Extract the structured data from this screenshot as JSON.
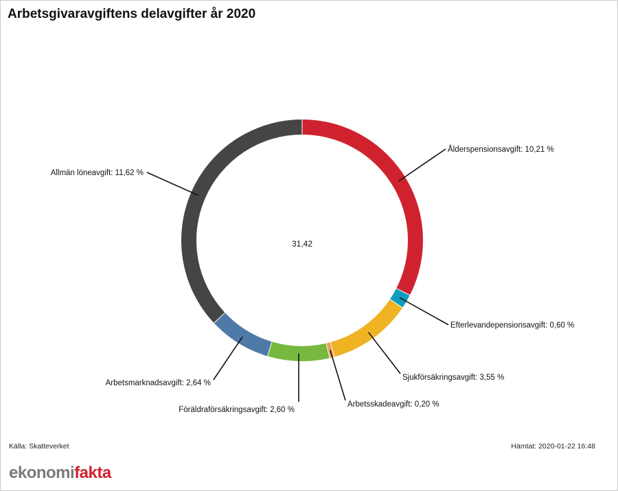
{
  "title": "Arbetsgivaravgiftens delavgifter år 2020",
  "source": "Källa: Skatteverket",
  "retrieved": "Hämtat: 2020-01-22 16:48",
  "logo": {
    "part1": "ekonomi",
    "part2": "fakta"
  },
  "chart_data": {
    "type": "pie",
    "donut": true,
    "center_label": "31,42",
    "categories": [
      "Ålderspensionsavgift",
      "Efterlevandepensionsavgift",
      "Sjukförsäkringsavgift",
      "Arbetsskadeavgift",
      "Föräldraförsäkringsavgift",
      "Arbetsmarknadsavgift",
      "Allmän löneavgift"
    ],
    "values": [
      10.21,
      0.6,
      3.55,
      0.2,
      2.6,
      2.64,
      11.62
    ],
    "labels": [
      "Ålderspensionsavgift: 10,21 %",
      "Efterlevandepensionsavgift: 0,60 %",
      "Sjukförsäkringsavgift: 3,55 %",
      "Arbetsskadeavgift: 0,20 %",
      "Föräldraförsäkringsavgift: 2,60 %",
      "Arbetsmarknadsavgift: 2,64 %",
      "Allmän löneavgift: 11,62 %"
    ],
    "colors": [
      "#d0222e",
      "#0d9dbe",
      "#f0b323",
      "#f39a5a",
      "#77b83f",
      "#4f7aa8",
      "#454545"
    ]
  }
}
